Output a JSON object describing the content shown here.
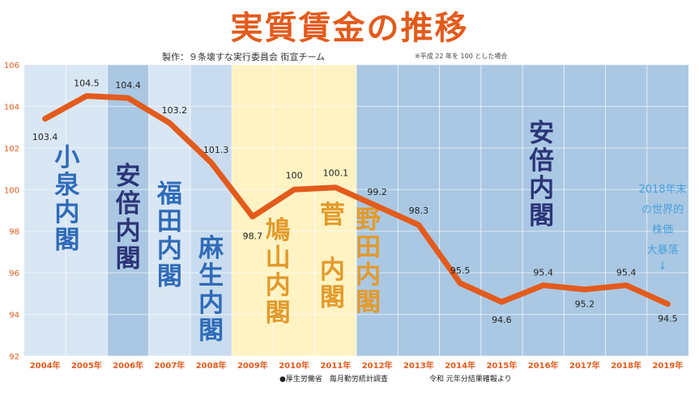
{
  "header": {
    "title": "実質賃金の推移",
    "credit": "製作：９条壊すな実行委員会 街宣チーム",
    "note": "※平成 22 年を 100 とした場合"
  },
  "footer": {
    "source_left": "●厚生労働省　毎月勤労統計調査",
    "source_right": "令和 元年分結果確報より"
  },
  "chart_data": {
    "type": "line",
    "title": "実質賃金の推移",
    "categories": [
      "2004年",
      "2005年",
      "2006年",
      "2007年",
      "2008年",
      "2009年",
      "2010年",
      "2011年",
      "2012年",
      "2013年",
      "2014年",
      "2015年",
      "2016年",
      "2017年",
      "2018年",
      "2019年"
    ],
    "series": [
      {
        "values": [
          103.4,
          104.5,
          104.4,
          103.2,
          101.3,
          98.7,
          100,
          100.1,
          99.2,
          98.3,
          95.5,
          94.6,
          95.4,
          95.2,
          95.4,
          94.5
        ],
        "labels": [
          "103.4",
          "104.5",
          "104.4",
          "103.2",
          "101.3",
          "98.7",
          "100",
          "100.1",
          "99.2",
          "98.3",
          "95.5",
          "94.6",
          "95.4",
          "95.2",
          "95.4",
          "94.5"
        ]
      }
    ],
    "ylim": [
      92,
      106
    ],
    "yticks": [
      "92",
      "94",
      "96",
      "98",
      "100",
      "102",
      "104",
      "106"
    ],
    "line_color": "#e35b1c",
    "eras": [
      {
        "label": "小泉内閣",
        "color": "#2f6bb8",
        "bg": "#d9e6f4"
      },
      {
        "label": "安倍内閣",
        "color": "#2b3478",
        "bg": "#aac8e3"
      },
      {
        "label": "福田内閣",
        "color": "#2f6bb8",
        "bg": "#d9e6f4"
      },
      {
        "label": "麻生内閣",
        "color": "#2f6bb8",
        "bg": "#c9dcef"
      },
      {
        "label": "鳩山内閣",
        "color": "#e39a2b",
        "bg": "#fff3c4"
      },
      {
        "label": "菅　内閣",
        "color": "#e39a2b",
        "bg": "#fff3c4"
      },
      {
        "label": "野田内閣",
        "color": "#e39a2b",
        "bg": "#fff3c4"
      },
      {
        "label": "安倍内閣",
        "color": "#2b3478",
        "bg": "#aac8e3"
      }
    ],
    "annotation": {
      "lines": [
        "2018年末",
        "の世界的",
        "株価",
        "大暴落"
      ],
      "arrow": "↓",
      "color": "#4aa0dc"
    }
  }
}
